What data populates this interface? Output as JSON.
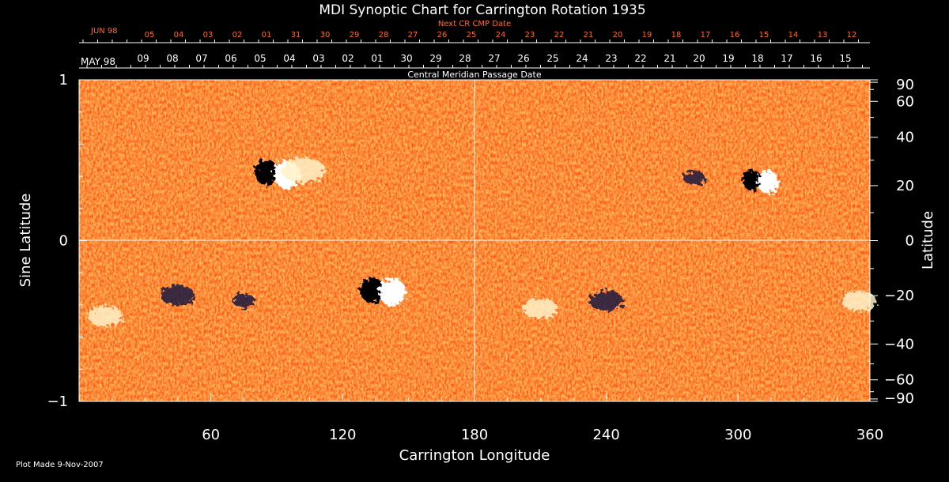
{
  "chart_data": {
    "type": "heatmap",
    "title": "MDI Synoptic Chart for Carrington Rotation 1935",
    "xlabel": "Carrington Longitude",
    "ylabel_left": "Sine Latitude",
    "ylabel_right": "Latitude",
    "xlim": [
      0,
      360
    ],
    "ylim_sine": [
      -1,
      1
    ],
    "x_ticks": [
      60,
      120,
      180,
      240,
      300,
      360
    ],
    "y_ticks_left": [
      {
        "value": 1,
        "label": "1"
      },
      {
        "value": 0,
        "label": "0"
      },
      {
        "value": -1,
        "label": "−1"
      }
    ],
    "y_ticks_right": [
      90,
      60,
      40,
      20,
      0,
      -20,
      -40,
      -60,
      -90
    ],
    "top_axis_title": "Next CR CMP Date",
    "top_axis_start_label": "JUN 98",
    "top_axis_dates": [
      "05",
      "04",
      "03",
      "02",
      "01",
      "31",
      "30",
      "29",
      "28",
      "27",
      "26",
      "25",
      "24",
      "23",
      "22",
      "21",
      "20",
      "19",
      "18",
      "17",
      "16",
      "15",
      "14",
      "13",
      "12"
    ],
    "bottom_axis_title": "Central Meridian Passage Date",
    "bottom_axis_start_label": "MAY 98",
    "bottom_axis_dates": [
      "09",
      "08",
      "07",
      "06",
      "05",
      "04",
      "03",
      "02",
      "01",
      "30",
      "29",
      "28",
      "27",
      "26",
      "25",
      "24",
      "23",
      "22",
      "21",
      "20",
      "19",
      "18",
      "17",
      "16",
      "15"
    ],
    "colors": {
      "background_field": "#ff5a14",
      "positive_polarity": "#ffffff",
      "negative_polarity": "#000000",
      "label_orange": "#ff6a2a"
    },
    "active_regions": [
      {
        "longitude": 90,
        "latitude": 25,
        "polarity": "bipolar",
        "strength": "strong"
      },
      {
        "longitude": 102,
        "latitude": 26,
        "polarity": "positive",
        "strength": "strong"
      },
      {
        "longitude": 138,
        "latitude": -18,
        "polarity": "bipolar",
        "strength": "strong"
      },
      {
        "longitude": 310,
        "latitude": 22,
        "polarity": "bipolar",
        "strength": "medium"
      },
      {
        "longitude": 210,
        "latitude": -25,
        "polarity": "positive",
        "strength": "medium"
      },
      {
        "longitude": 240,
        "latitude": -22,
        "polarity": "negative",
        "strength": "medium"
      },
      {
        "longitude": 45,
        "latitude": -20,
        "polarity": "negative",
        "strength": "medium"
      },
      {
        "longitude": 12,
        "latitude": -28,
        "polarity": "positive",
        "strength": "medium"
      },
      {
        "longitude": 355,
        "latitude": -22,
        "polarity": "positive",
        "strength": "medium"
      },
      {
        "longitude": 75,
        "latitude": -22,
        "polarity": "negative",
        "strength": "weak"
      },
      {
        "longitude": 280,
        "latitude": 23,
        "polarity": "negative",
        "strength": "weak"
      }
    ]
  },
  "footer": {
    "plot_made": "Plot Made  9-Nov-2007"
  }
}
